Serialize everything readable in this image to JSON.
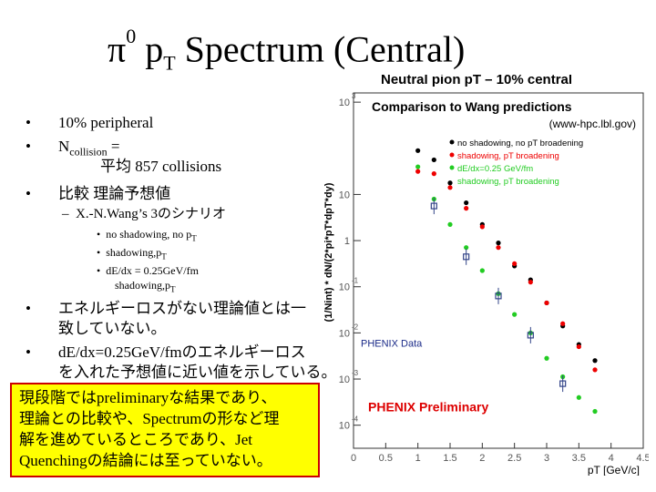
{
  "slide": {
    "title_prefix": "π",
    "title_sup": "0",
    "title_p": " p",
    "title_sub": "T",
    "title_rest": " Spectrum (Central)",
    "bullet_char": "•",
    "dash_char": "–",
    "bullets": [
      "10% peripheral",
      "N",
      "collision",
      " = ",
      "平均 857 collisions",
      "比較 理論予想値",
      "X.-N.Wang’s 3のシナリオ",
      "no shadowing, no p",
      "T",
      "shadowing,p",
      "dE/dx = 0.25GeV/fm",
      "shadowing,p",
      "エネルギーロスがない理論値とは一",
      "致していない。",
      "dE/dx=0.25GeV/fmのエネルギーロス",
      "を入れた予想値に近い値を示している。"
    ],
    "box_lines": [
      "現段階ではpreliminaryな結果であり、",
      "理論との比較や、Spectrumの形など理",
      "解を進めているところであり、Jet",
      "Quenchingの結論には至っていない。"
    ]
  },
  "chart_data": {
    "type": "scatter",
    "title": "Neutral pion pT – 10% central",
    "subtitle": "Comparison to Wang predictions",
    "source": "(www-hpc.lbl.gov)",
    "xlabel": "pT [GeV/c]",
    "ylabel": "(1/Nint) * dN/(2*pi*pT*dpT*dy)",
    "xlim": [
      0,
      4.5
    ],
    "ylog": true,
    "ylim_exp": [
      -4.5,
      3.2
    ],
    "x_ticks": [
      "0",
      "0.5",
      "1",
      "1.5",
      "2",
      "2.5",
      "3",
      "3.5",
      "4",
      "4.5"
    ],
    "y_ticks": [
      {
        "base": "10",
        "exp": "3",
        "value": 3
      },
      {
        "base": "10",
        "exp": "",
        "value": 1
      },
      {
        "base": "1",
        "exp": "",
        "value": 0
      },
      {
        "base": "10",
        "exp": "-1",
        "value": -1
      },
      {
        "base": "10",
        "exp": "-2",
        "value": -2
      },
      {
        "base": "10",
        "exp": "-3",
        "value": -3
      },
      {
        "base": "10",
        "exp": "-4",
        "value": -4
      }
    ],
    "legend": [
      {
        "label": "no shadowing, no pT broadening",
        "color": "#000000"
      },
      {
        "label": "shadowing, pT broadening",
        "color": "#ee0000"
      },
      {
        "label": "dE/dx=0.25 GeV/fm",
        "color": "#22cc22"
      },
      {
        "label": "shadowing, pT broadening",
        "color": "#22cc22"
      }
    ],
    "series": [
      {
        "name": "no shadowing, no pT broadening",
        "color": "#000000",
        "x": [
          1.0,
          1.25,
          1.5,
          1.75,
          2.0,
          2.25,
          2.5,
          2.75,
          3.0,
          3.25,
          3.5,
          3.75
        ],
        "logy": [
          1.95,
          1.75,
          1.25,
          0.82,
          0.35,
          -0.05,
          -0.55,
          -0.85,
          -1.35,
          -1.85,
          -2.25,
          -2.6
        ]
      },
      {
        "name": "shadowing, pT broadening",
        "color": "#ee0000",
        "x": [
          1.0,
          1.25,
          1.5,
          1.75,
          2.0,
          2.25,
          2.5,
          2.75,
          3.0,
          3.25,
          3.5,
          3.75
        ],
        "logy": [
          1.5,
          1.45,
          1.15,
          0.7,
          0.3,
          -0.15,
          -0.5,
          -0.9,
          -1.35,
          -1.8,
          -2.3,
          -2.8
        ]
      },
      {
        "name": "dE/dx=0.25 GeV/fm shadowing, pT broadening",
        "color": "#22cc22",
        "x": [
          1.0,
          1.25,
          1.5,
          1.75,
          2.0,
          2.25,
          2.5,
          2.75,
          3.0,
          3.25,
          3.5,
          3.75
        ],
        "logy": [
          1.6,
          0.9,
          0.35,
          -0.15,
          -0.65,
          -1.15,
          -1.6,
          -2.0,
          -2.55,
          -2.95,
          -3.4,
          -3.7
        ]
      },
      {
        "name": "PHENIX Data",
        "color": "#334488",
        "x": [
          1.25,
          1.75,
          2.25,
          2.75,
          3.25
        ],
        "logy": [
          0.75,
          -0.35,
          -1.2,
          -2.05,
          -3.1
        ]
      }
    ],
    "annotations": [
      "PHENIX Data",
      "PHENIX Preliminary"
    ]
  }
}
